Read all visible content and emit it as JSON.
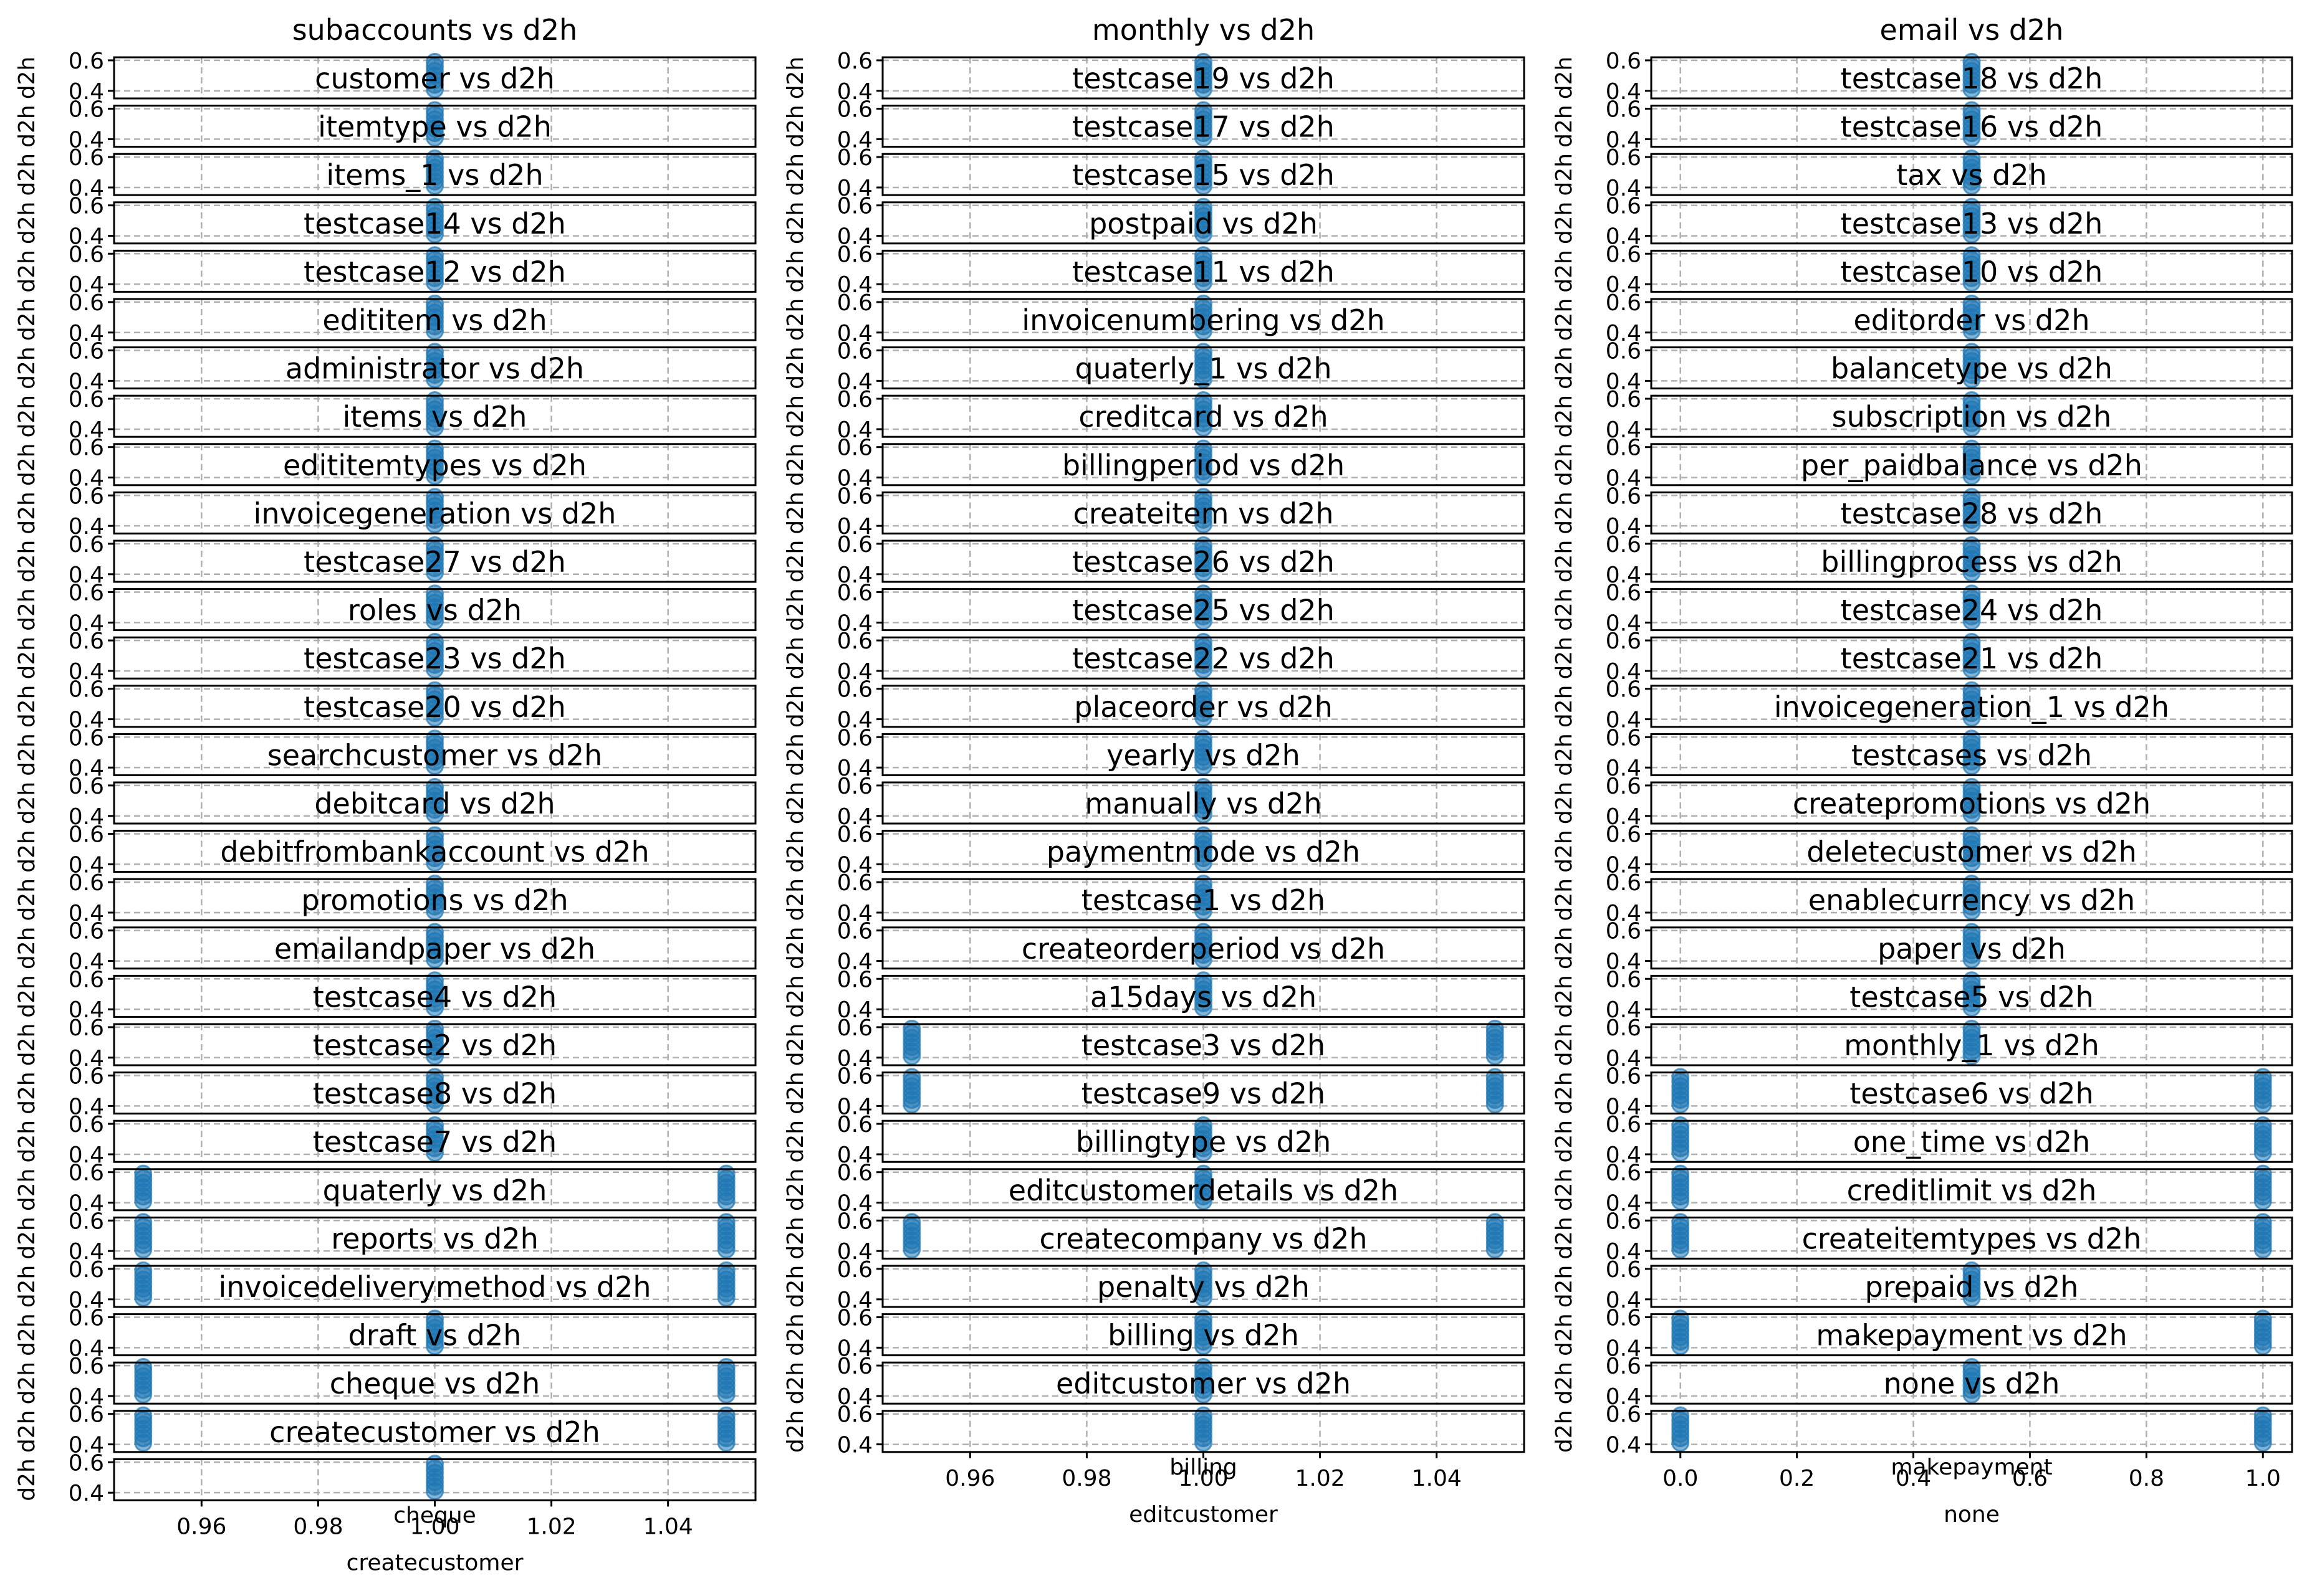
{
  "chart_data": [
    {
      "type": "scatter",
      "title": "subaccounts vs d2h",
      "ylabel": "d2h",
      "subplots": [
        {
          "title": "customer vs d2h",
          "x": [
            1.0
          ]
        },
        {
          "title": "itemtype vs d2h",
          "x": [
            1.0
          ]
        },
        {
          "title": "items_1 vs d2h",
          "x": [
            1.0
          ]
        },
        {
          "title": "testcase14 vs d2h",
          "x": [
            1.0
          ]
        },
        {
          "title": "testcase12 vs d2h",
          "x": [
            1.0
          ]
        },
        {
          "title": "edititem vs d2h",
          "x": [
            1.0
          ]
        },
        {
          "title": "administrator vs d2h",
          "x": [
            1.0
          ]
        },
        {
          "title": "items vs d2h",
          "x": [
            1.0
          ]
        },
        {
          "title": "edititemtypes vs d2h",
          "x": [
            1.0
          ]
        },
        {
          "title": "invoicegeneration vs d2h",
          "x": [
            1.0
          ]
        },
        {
          "title": "testcase27 vs d2h",
          "x": [
            1.0
          ]
        },
        {
          "title": "roles vs d2h",
          "x": [
            1.0
          ]
        },
        {
          "title": "testcase23 vs d2h",
          "x": [
            1.0
          ]
        },
        {
          "title": "testcase20 vs d2h",
          "x": [
            1.0
          ]
        },
        {
          "title": "searchcustomer vs d2h",
          "x": [
            1.0
          ]
        },
        {
          "title": "debitcard vs d2h",
          "x": [
            1.0
          ]
        },
        {
          "title": "debitfrombankaccount vs d2h",
          "x": [
            1.0
          ]
        },
        {
          "title": "promotions vs d2h",
          "x": [
            1.0
          ]
        },
        {
          "title": "emailandpaper vs d2h",
          "x": [
            1.0
          ]
        },
        {
          "title": "testcase4 vs d2h",
          "x": [
            1.0
          ]
        },
        {
          "title": "testcase2 vs d2h",
          "x": [
            1.0
          ]
        },
        {
          "title": "testcase8 vs d2h",
          "x": [
            1.0
          ]
        },
        {
          "title": "testcase7 vs d2h",
          "x": [
            1.0
          ]
        },
        {
          "title": "quaterly vs d2h",
          "x": [
            0.95,
            1.05
          ]
        },
        {
          "title": "reports vs d2h",
          "x": [
            0.95,
            1.05
          ]
        },
        {
          "title": "invoicedeliverymethod vs d2h",
          "x": [
            0.95,
            1.05
          ]
        },
        {
          "title": "draft vs d2h",
          "x": [
            1.0
          ]
        },
        {
          "title": "cheque vs d2h",
          "x": [
            0.95,
            1.05
          ]
        },
        {
          "title": "createcustomer vs d2h",
          "x": [
            0.95,
            1.05
          ]
        },
        {
          "title": "",
          "x": [
            1.0
          ]
        }
      ],
      "x_ticks": [
        "0.96",
        "0.98",
        "1.00",
        "1.02",
        "1.04"
      ],
      "y_ticks": [
        "0.4",
        "0.6"
      ],
      "overlapping_xlabel": "cheque",
      "xlabel": "createcustomer",
      "xlim": [
        0.945,
        1.055
      ],
      "ylim": [
        0.35,
        0.62
      ]
    },
    {
      "type": "scatter",
      "title": "monthly vs d2h",
      "ylabel": "d2h",
      "subplots": [
        {
          "title": "testcase19 vs d2h",
          "x": [
            1.0
          ]
        },
        {
          "title": "testcase17 vs d2h",
          "x": [
            1.0
          ]
        },
        {
          "title": "testcase15 vs d2h",
          "x": [
            1.0
          ]
        },
        {
          "title": "postpaid vs d2h",
          "x": [
            1.0
          ]
        },
        {
          "title": "testcase11 vs d2h",
          "x": [
            1.0
          ]
        },
        {
          "title": "invoicenumbering vs d2h",
          "x": [
            1.0
          ]
        },
        {
          "title": "quaterly_1 vs d2h",
          "x": [
            1.0
          ]
        },
        {
          "title": "creditcard vs d2h",
          "x": [
            1.0
          ]
        },
        {
          "title": "billingperiod vs d2h",
          "x": [
            1.0
          ]
        },
        {
          "title": "createitem vs d2h",
          "x": [
            1.0
          ]
        },
        {
          "title": "testcase26 vs d2h",
          "x": [
            1.0
          ]
        },
        {
          "title": "testcase25 vs d2h",
          "x": [
            1.0
          ]
        },
        {
          "title": "testcase22 vs d2h",
          "x": [
            1.0
          ]
        },
        {
          "title": "placeorder vs d2h",
          "x": [
            1.0
          ]
        },
        {
          "title": "yearly vs d2h",
          "x": [
            1.0
          ]
        },
        {
          "title": "manually vs d2h",
          "x": [
            1.0
          ]
        },
        {
          "title": "paymentmode vs d2h",
          "x": [
            1.0
          ]
        },
        {
          "title": "testcase1 vs d2h",
          "x": [
            1.0
          ]
        },
        {
          "title": "createorderperiod vs d2h",
          "x": [
            1.0
          ]
        },
        {
          "title": "a15days vs d2h",
          "x": [
            1.0
          ]
        },
        {
          "title": "testcase3 vs d2h",
          "x": [
            0.95,
            1.05
          ]
        },
        {
          "title": "testcase9 vs d2h",
          "x": [
            0.95,
            1.05
          ]
        },
        {
          "title": "billingtype vs d2h",
          "x": [
            1.0
          ]
        },
        {
          "title": "editcustomerdetails vs d2h",
          "x": [
            1.0
          ]
        },
        {
          "title": "createcompany vs d2h",
          "x": [
            0.95,
            1.05
          ]
        },
        {
          "title": "penalty vs d2h",
          "x": [
            1.0
          ]
        },
        {
          "title": "billing vs d2h",
          "x": [
            1.0
          ]
        },
        {
          "title": "editcustomer vs d2h",
          "x": [
            1.0
          ]
        },
        {
          "title": "",
          "x": [
            1.0
          ]
        }
      ],
      "x_ticks": [
        "0.96",
        "0.98",
        "1.00",
        "1.02",
        "1.04"
      ],
      "y_ticks": [
        "0.4",
        "0.6"
      ],
      "overlapping_xlabel": "billing",
      "xlabel": "editcustomer",
      "xlim": [
        0.945,
        1.055
      ],
      "ylim": [
        0.35,
        0.62
      ]
    },
    {
      "type": "scatter",
      "title": "email vs d2h",
      "ylabel": "d2h",
      "subplots": [
        {
          "title": "testcase18 vs d2h",
          "x": [
            0.5
          ]
        },
        {
          "title": "testcase16 vs d2h",
          "x": [
            0.5
          ]
        },
        {
          "title": "tax vs d2h",
          "x": [
            0.5
          ]
        },
        {
          "title": "testcase13 vs d2h",
          "x": [
            0.5
          ]
        },
        {
          "title": "testcase10 vs d2h",
          "x": [
            0.5
          ]
        },
        {
          "title": "editorder vs d2h",
          "x": [
            0.5
          ]
        },
        {
          "title": "balancetype vs d2h",
          "x": [
            0.5
          ]
        },
        {
          "title": "subscription vs d2h",
          "x": [
            0.5
          ]
        },
        {
          "title": "per_paidbalance vs d2h",
          "x": [
            0.5
          ]
        },
        {
          "title": "testcase28 vs d2h",
          "x": [
            0.5
          ]
        },
        {
          "title": "billingprocess vs d2h",
          "x": [
            0.5
          ]
        },
        {
          "title": "testcase24 vs d2h",
          "x": [
            0.5
          ]
        },
        {
          "title": "testcase21 vs d2h",
          "x": [
            0.5
          ]
        },
        {
          "title": "invoicegeneration_1 vs d2h",
          "x": [
            0.5
          ]
        },
        {
          "title": "testcases vs d2h",
          "x": [
            0.5
          ]
        },
        {
          "title": "createpromotions vs d2h",
          "x": [
            0.5
          ]
        },
        {
          "title": "deletecustomer vs d2h",
          "x": [
            0.5
          ]
        },
        {
          "title": "enablecurrency vs d2h",
          "x": [
            0.5
          ]
        },
        {
          "title": "paper vs d2h",
          "x": [
            0.5
          ]
        },
        {
          "title": "testcase5 vs d2h",
          "x": [
            0.5
          ]
        },
        {
          "title": "monthly_1 vs d2h",
          "x": [
            0.5
          ]
        },
        {
          "title": "testcase6 vs d2h",
          "x": [
            0.0,
            1.0
          ]
        },
        {
          "title": "one_time vs d2h",
          "x": [
            0.0,
            1.0
          ]
        },
        {
          "title": "creditlimit vs d2h",
          "x": [
            0.0,
            1.0
          ]
        },
        {
          "title": "createitemtypes vs d2h",
          "x": [
            0.0,
            1.0
          ]
        },
        {
          "title": "prepaid vs d2h",
          "x": [
            0.5
          ]
        },
        {
          "title": "makepayment vs d2h",
          "x": [
            0.0,
            1.0
          ]
        },
        {
          "title": "none vs d2h",
          "x": [
            0.5
          ]
        },
        {
          "title": "",
          "x": [
            0.0,
            1.0
          ]
        }
      ],
      "x_ticks": [
        "0.0",
        "0.2",
        "0.4",
        "0.6",
        "0.8",
        "1.0"
      ],
      "y_ticks": [
        "0.4",
        "0.6"
      ],
      "overlapping_xlabel": "makepayment",
      "xlabel": "none",
      "xlim": [
        -0.05,
        1.05
      ],
      "ylim": [
        0.35,
        0.62
      ]
    }
  ]
}
